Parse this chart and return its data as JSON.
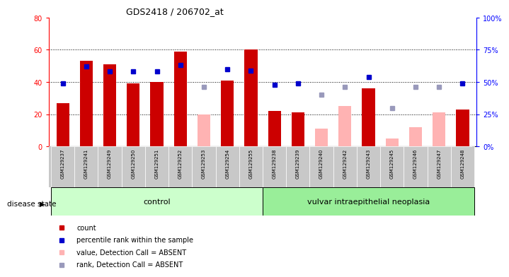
{
  "title": "GDS2418 / 206702_at",
  "samples": [
    "GSM129237",
    "GSM129241",
    "GSM129249",
    "GSM129250",
    "GSM129251",
    "GSM129252",
    "GSM129253",
    "GSM129254",
    "GSM129255",
    "GSM129238",
    "GSM129239",
    "GSM129240",
    "GSM129242",
    "GSM129243",
    "GSM129245",
    "GSM129246",
    "GSM129247",
    "GSM129248"
  ],
  "count_values": [
    27,
    53,
    51,
    39,
    40,
    59,
    null,
    41,
    60,
    22,
    21,
    null,
    null,
    36,
    null,
    null,
    null,
    23
  ],
  "count_absent_values": [
    null,
    null,
    null,
    null,
    null,
    null,
    20,
    null,
    null,
    null,
    null,
    11,
    25,
    null,
    5,
    12,
    21,
    null
  ],
  "percentile_values": [
    49,
    62,
    58,
    58,
    58,
    63,
    null,
    60,
    59,
    48,
    49,
    null,
    null,
    54,
    null,
    null,
    null,
    49
  ],
  "percentile_absent_values": [
    null,
    null,
    null,
    null,
    null,
    null,
    46,
    null,
    null,
    null,
    null,
    40,
    46,
    null,
    30,
    46,
    46,
    null
  ],
  "n_control": 9,
  "n_disease": 9,
  "control_label": "control",
  "disease_label": "vulvar intraepithelial neoplasia",
  "disease_state_label": "disease state",
  "legend_entries": [
    "count",
    "percentile rank within the sample",
    "value, Detection Call = ABSENT",
    "rank, Detection Call = ABSENT"
  ],
  "bar_color_present": "#cc0000",
  "bar_color_absent": "#ffb3b3",
  "dot_color_present": "#0000cc",
  "dot_color_absent": "#9999bb",
  "ylim_left": [
    0,
    80
  ],
  "ylim_right": [
    0,
    100
  ],
  "yticks_left": [
    0,
    20,
    40,
    60,
    80
  ],
  "yticks_right": [
    0,
    25,
    50,
    75,
    100
  ],
  "ytick_labels_right": [
    "0%",
    "25%",
    "50%",
    "75%",
    "100%"
  ],
  "control_bg": "#ccffcc",
  "disease_bg": "#99ee99",
  "tick_bg": "#c8c8c8",
  "bar_width": 0.55
}
